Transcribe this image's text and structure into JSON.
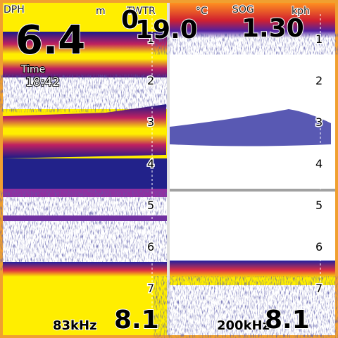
{
  "left_panel": {
    "depth_label": "DPH",
    "depth_unit": "m",
    "depth_value": "6.4",
    "temp_label": "TWTR",
    "stray_digit": "0",
    "temp_value": "19.0",
    "time_label": "Time",
    "time_value": "18:42",
    "frequency": "83kHz",
    "range": "8.1",
    "scale": [
      "1",
      "2",
      "3",
      "4",
      "5",
      "6",
      "7"
    ]
  },
  "right_panel": {
    "temp_unit": "°C",
    "speed_label": "SOG",
    "speed_unit": "kph",
    "speed_value": "1.30",
    "frequency": "200kHz",
    "range": "8.1",
    "scale": [
      "1",
      "2",
      "3",
      "4",
      "5",
      "6",
      "7"
    ]
  }
}
